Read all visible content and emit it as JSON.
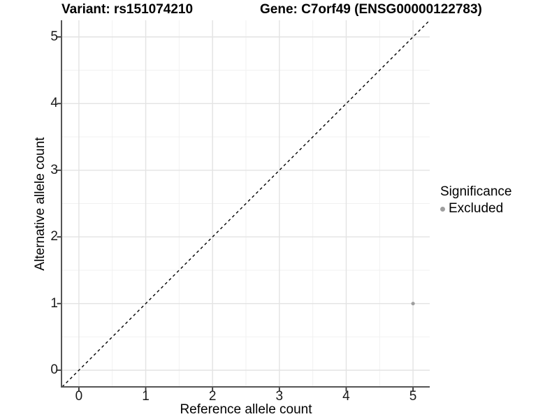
{
  "chart_data": {
    "type": "scatter",
    "titles": [
      "Variant: rs151074210",
      "Gene: C7orf49 (ENSG00000122783)"
    ],
    "xlabel": "Reference allele count",
    "ylabel": "Alternative allele count",
    "xlim": [
      -0.25,
      5.25
    ],
    "ylim": [
      -0.25,
      5.25
    ],
    "x_ticks": [
      0,
      1,
      2,
      3,
      4,
      5
    ],
    "y_ticks": [
      0,
      1,
      2,
      3,
      4,
      5
    ],
    "x_minor_ticks": [
      0.5,
      1.5,
      2.5,
      3.5,
      4.5
    ],
    "y_minor_ticks": [
      0.5,
      1.5,
      2.5,
      3.5,
      4.5
    ],
    "grid": "major+minor",
    "series": [
      {
        "name": "Excluded",
        "marker": "circle",
        "color": "#9e9e9e",
        "points": [
          {
            "x": 5,
            "y": 1
          }
        ]
      }
    ],
    "reference_line": {
      "kind": "identity y=x",
      "style": "dashed",
      "color": "#000000",
      "from": [
        -0.25,
        -0.25
      ],
      "to": [
        5.25,
        5.25
      ]
    },
    "legend": {
      "title": "Significance",
      "position": "right",
      "items": [
        {
          "label": "Excluded",
          "color": "#9e9e9e",
          "marker": "circle"
        }
      ]
    }
  },
  "style": {
    "background": "#ffffff",
    "grid_major_color": "#e3e3e3",
    "grid_minor_color": "#f1f1f1",
    "axis_line_color": "#555555",
    "tick_mark_color": "#333333",
    "tick_label_color": "#1a1a1a",
    "text_color": "#000000",
    "point_color": "#9e9e9e"
  }
}
